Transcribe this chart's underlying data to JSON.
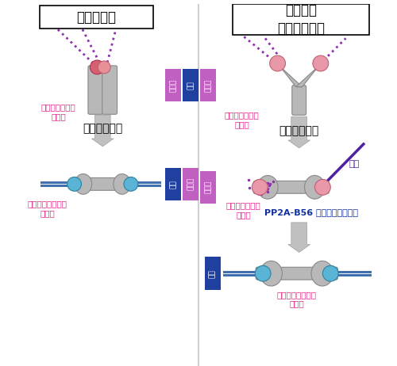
{
  "title_left": "体細胞分裂",
  "title_right": "卵母細胞\n減数第一分裂",
  "label_phospho": "リン酸化された\n動原体",
  "label_dephospho": "脱リン酸化された\n動原体",
  "label_stretched": "引っ張られる",
  "label_pp2a": "PP2A-B56 による脱リン酸化",
  "label_error": "誤り",
  "label_stable": "安定",
  "label_unstable": "不安定",
  "color_pink": "#e8808a",
  "color_pink_dark": "#d4606a",
  "color_blue": "#5ab4d6",
  "color_gray": "#b8b8b8",
  "color_gray_dark": "#909090",
  "color_purple_box": "#c060c0",
  "color_blue_box": "#2040a0",
  "color_magenta_text": "#e0208a",
  "color_dotted": "#9030b0",
  "color_arrow_gray": "#c0c0c0",
  "color_error_purple": "#5020a0",
  "bg_color": "#ffffff"
}
